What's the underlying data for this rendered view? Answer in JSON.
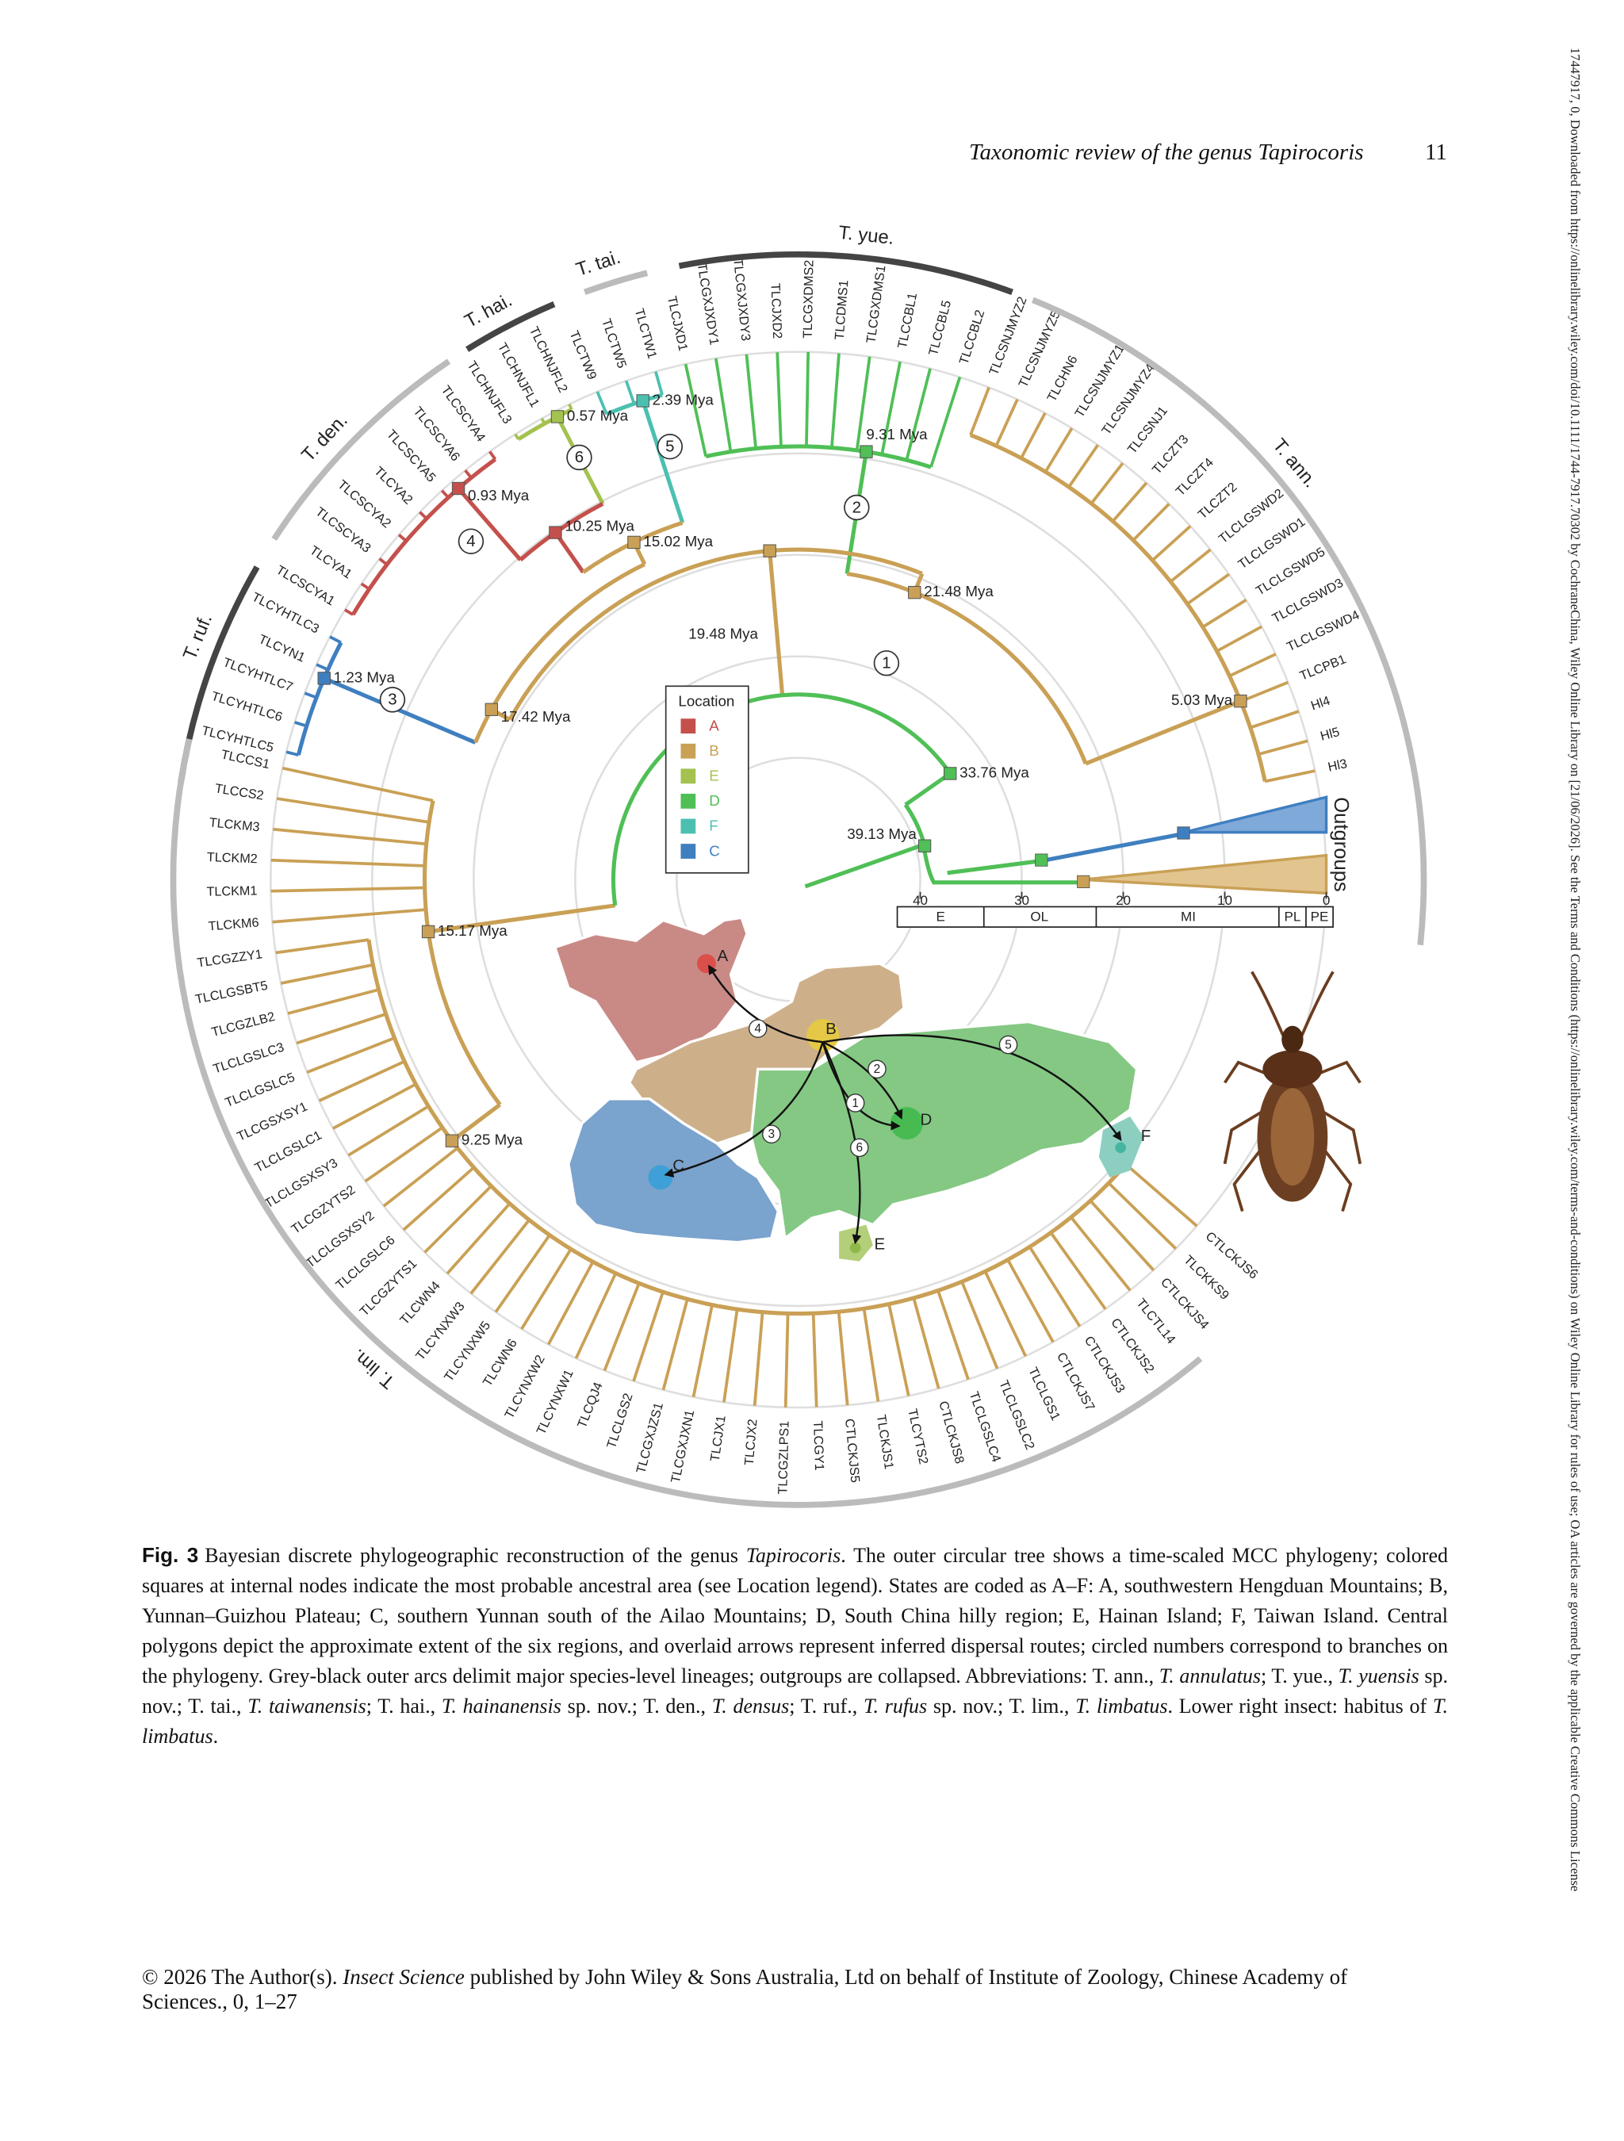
{
  "header": {
    "running_title": "Taxonomic review of the genus Tapirocoris",
    "page_number": "11"
  },
  "side_note": "17447917, 0, Downloaded from https://onlinelibrary.wiley.com/doi/10.1111/1744-7917.70302 by CochraneChina, Wiley Online Library on [21/06/2026]. See the Terms and Conditions (https://onlinelibrary.wiley.com/terms-and-conditions) on Wiley Online Library for rules of use; OA articles are governed by the applicable Creative Commons License",
  "figure": {
    "clades": [
      "T. ruf.",
      "T. den.",
      "T. hai.",
      "T. tai.",
      "T. yue.",
      "T. ann.",
      "T. lim."
    ],
    "outgroups": "Outgroups",
    "upper_tips": [
      "TLCYHTLC5",
      "TLCYHTLC6",
      "TLCYHTLC7",
      "TLCYN1",
      "TLCYHTLC3",
      "TLCSCYA1",
      "TLCYA1",
      "TLCSCYA3",
      "TLCSCYA2",
      "TLCYA2",
      "TLCSCYA5",
      "TLCSCYA6",
      "TLCSCYA4",
      "TLCHNJFL3",
      "TLCHNJFL1",
      "TLCHNJFL2",
      "TLCTW9",
      "TLCTW5",
      "TLCTW1",
      "TLCJXD1",
      "TLCGXJXDY1",
      "TLCGXJXDY3",
      "TLCJXD2",
      "TLCGXDMS2",
      "TLCDMS1",
      "TLCGXDMS1",
      "TLCCBL1",
      "TLCCBL5",
      "TLCCBL2",
      "TLCSNJMYZ2",
      "TLCSNJMYZ5",
      "TLCHN6",
      "TLCSNJMYZ1",
      "TLCSNJMYZ4",
      "TLCSNJ1",
      "TLCZT3",
      "TLCZT4",
      "TLCZT2",
      "TLCLGSWD2",
      "TLCLGSWD1",
      "TLCLGSWD5",
      "TLCLGSWD3",
      "TLCLGSWD4",
      "TLCPB1",
      "Hl4",
      "Hl5",
      "Hl3"
    ],
    "lower_tips": [
      "CTLCKJS6",
      "TLCKKS9",
      "CTLCKJS4",
      "TLCTL14",
      "CTLCKJS2",
      "CTLCKJS3",
      "CTLCKJS7",
      "TLCLGS1",
      "TLCLGSLC2",
      "TLCLGSLC4",
      "CTLCKJS8",
      "TLCYTS2",
      "TLCKJS1",
      "CTLCKJS5",
      "TLCGY1",
      "TLCGZLPS1",
      "TLCJX2",
      "TLCJX1",
      "TLCGXJXN1",
      "TLCGXJZS1",
      "TLCLGS2",
      "TLCQJ4",
      "TLCYNXW1",
      "TLCYNXW2",
      "TLCWN6",
      "TLCYNXW5",
      "TLCYNXW3",
      "TLCWN4",
      "TLCGZYTS1",
      "TLCLGSLC6",
      "TLCLGSXSY2",
      "TLCGZYTS2",
      "TLCLGSXSY3",
      "TLCLGSLC1",
      "TLCGSXSY1",
      "TLCLGSLC5",
      "TLCLGSLC3",
      "TLCGZLB2",
      "TLCLGSBT5",
      "TLCGZZY1",
      "TLCKM6",
      "TLCKM1",
      "TLCKM2",
      "TLCKM3",
      "TLCCS2",
      "TLCCS1"
    ],
    "node_ages": [
      {
        "value": 0.57,
        "label": "0.57 Mya"
      },
      {
        "value": 2.39,
        "label": "2.39 Mya"
      },
      {
        "value": 9.31,
        "label": "9.31 Mya"
      },
      {
        "value": 0.93,
        "label": "0.93 Mya"
      },
      {
        "value": 10.25,
        "label": "10.25 Mya"
      },
      {
        "value": 15.02,
        "label": "15.02 Mya"
      },
      {
        "value": 21.48,
        "label": "21.48 Mya"
      },
      {
        "value": 19.48,
        "label": "19.48 Mya"
      },
      {
        "value": 1.23,
        "label": "1.23 Mya"
      },
      {
        "value": 17.42,
        "label": "17.42 Mya"
      },
      {
        "value": 33.76,
        "label": "33.76 Mya"
      },
      {
        "value": 39.13,
        "label": "39.13 Mya"
      },
      {
        "value": 5.03,
        "label": "5.03 Mya"
      },
      {
        "value": 15.17,
        "label": "15.17 Mya"
      },
      {
        "value": 9.25,
        "label": "9.25 Mya"
      }
    ],
    "branch_numbers": [
      "1",
      "2",
      "3",
      "4",
      "5",
      "6"
    ],
    "legend": {
      "title": "Location",
      "items": [
        {
          "state": "A",
          "color": "#c4504c"
        },
        {
          "state": "B",
          "color": "#c9a055"
        },
        {
          "state": "E",
          "color": "#a3c24f"
        },
        {
          "state": "D",
          "color": "#4fbf56"
        },
        {
          "state": "F",
          "color": "#4cc0b0"
        },
        {
          "state": "C",
          "color": "#3f7fc0"
        }
      ]
    },
    "time_axis": {
      "ticks": [
        40,
        30,
        20,
        10,
        0
      ],
      "epochs": [
        "E",
        "OL",
        "MI",
        "PL",
        "PE"
      ]
    },
    "map": {
      "regions": [
        "A",
        "B",
        "C",
        "D",
        "E",
        "F"
      ],
      "routes": [
        "4",
        "3",
        "2",
        "1",
        "6",
        "5"
      ]
    }
  },
  "caption": {
    "label": "Fig. 3",
    "runs": [
      {
        "text": "Bayesian discrete phylogeographic reconstruction of the genus "
      },
      {
        "text": "Tapirocoris",
        "italic": true
      },
      {
        "text": ". The outer circular tree shows a time-scaled MCC phylogeny; colored squares at internal nodes indicate the most probable ancestral area (see Location legend). States are coded as A–F: A, southwestern Hengduan Mountains; B, Yunnan–Guizhou Plateau; C, southern Yunnan south of the Ailao Mountains; D, South China hilly region; E, Hainan Island; F, Taiwan Island. Central polygons depict the approximate extent of the six regions, and overlaid arrows represent inferred dispersal routes; circled numbers correspond to branches on the phylogeny. Grey-black outer arcs delimit major species-level lineages; outgroups are collapsed. Abbreviations: T. ann., "
      },
      {
        "text": "T. annulatus",
        "italic": true
      },
      {
        "text": "; T. yue., "
      },
      {
        "text": "T. yuensis",
        "italic": true
      },
      {
        "text": " sp. nov.; T. tai., "
      },
      {
        "text": "T. taiwanensis",
        "italic": true
      },
      {
        "text": "; T. hai., "
      },
      {
        "text": "T. hainanensis",
        "italic": true
      },
      {
        "text": " sp. nov.; T. den., "
      },
      {
        "text": "T. densus",
        "italic": true
      },
      {
        "text": "; T. ruf., "
      },
      {
        "text": "T. rufus",
        "italic": true
      },
      {
        "text": " sp. nov.; T. lim., "
      },
      {
        "text": "T. limbatus",
        "italic": true
      },
      {
        "text": ". Lower right insect: habitus of "
      },
      {
        "text": "T. limbatus",
        "italic": true
      },
      {
        "text": "."
      }
    ]
  },
  "footer": {
    "runs": [
      {
        "text": "© 2026 The Author(s). "
      },
      {
        "text": "Insect Science",
        "italic": true
      },
      {
        "text": " published by John Wiley & Sons Australia, Ltd on behalf of Institute of Zoology, Chinese Academy of Sciences., 0, 1–27"
      }
    ]
  }
}
